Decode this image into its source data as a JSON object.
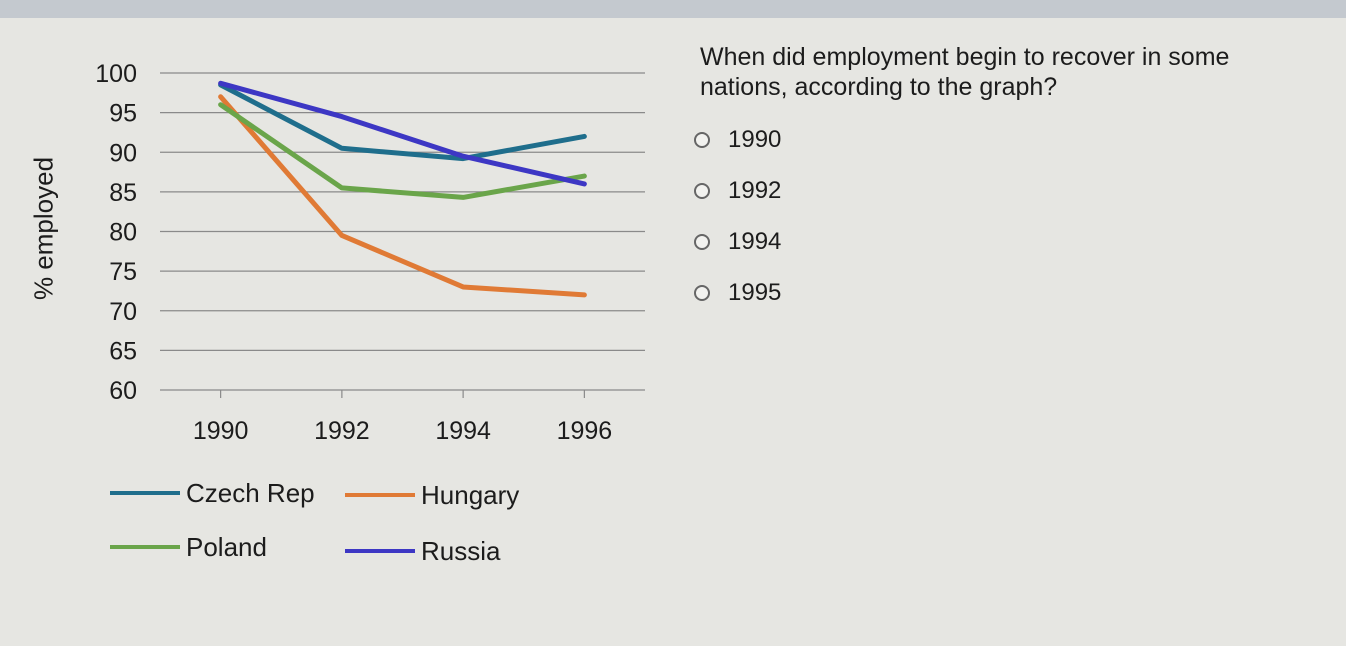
{
  "question": {
    "text": "When did employment begin to recover in some nations, according to the graph?",
    "options": [
      "1990",
      "1992",
      "1994",
      "1995"
    ]
  },
  "chart_data": {
    "type": "line",
    "title": "",
    "xlabel": "",
    "ylabel": "% employed",
    "x": [
      1990,
      1992,
      1994,
      1996
    ],
    "x_ticks": [
      "1990",
      "1992",
      "1994",
      "1996"
    ],
    "y_ticks": [
      "60",
      "65",
      "70",
      "75",
      "80",
      "85",
      "90",
      "95",
      "100"
    ],
    "ylim": [
      60,
      100
    ],
    "xlim": [
      1989,
      1997
    ],
    "grid": true,
    "legend_position": "bottom",
    "series": [
      {
        "name": "Czech Rep",
        "color": "#1f6e8c",
        "x": [
          1990,
          1992,
          1994,
          1996
        ],
        "values": [
          98.5,
          90.5,
          89.2,
          92
        ]
      },
      {
        "name": "Hungary",
        "color": "#e07a35",
        "x": [
          1990,
          1992,
          1994,
          1996
        ],
        "values": [
          97,
          79.5,
          73,
          72
        ]
      },
      {
        "name": "Poland",
        "color": "#6aa54a",
        "x": [
          1990,
          1992,
          1994,
          1996
        ],
        "values": [
          96,
          85.5,
          84.3,
          87
        ]
      },
      {
        "name": "Russia",
        "color": "#3d37c4",
        "x": [
          1990,
          1992,
          1994,
          1996
        ],
        "values": [
          98.7,
          94.5,
          89.5,
          86
        ]
      }
    ]
  }
}
